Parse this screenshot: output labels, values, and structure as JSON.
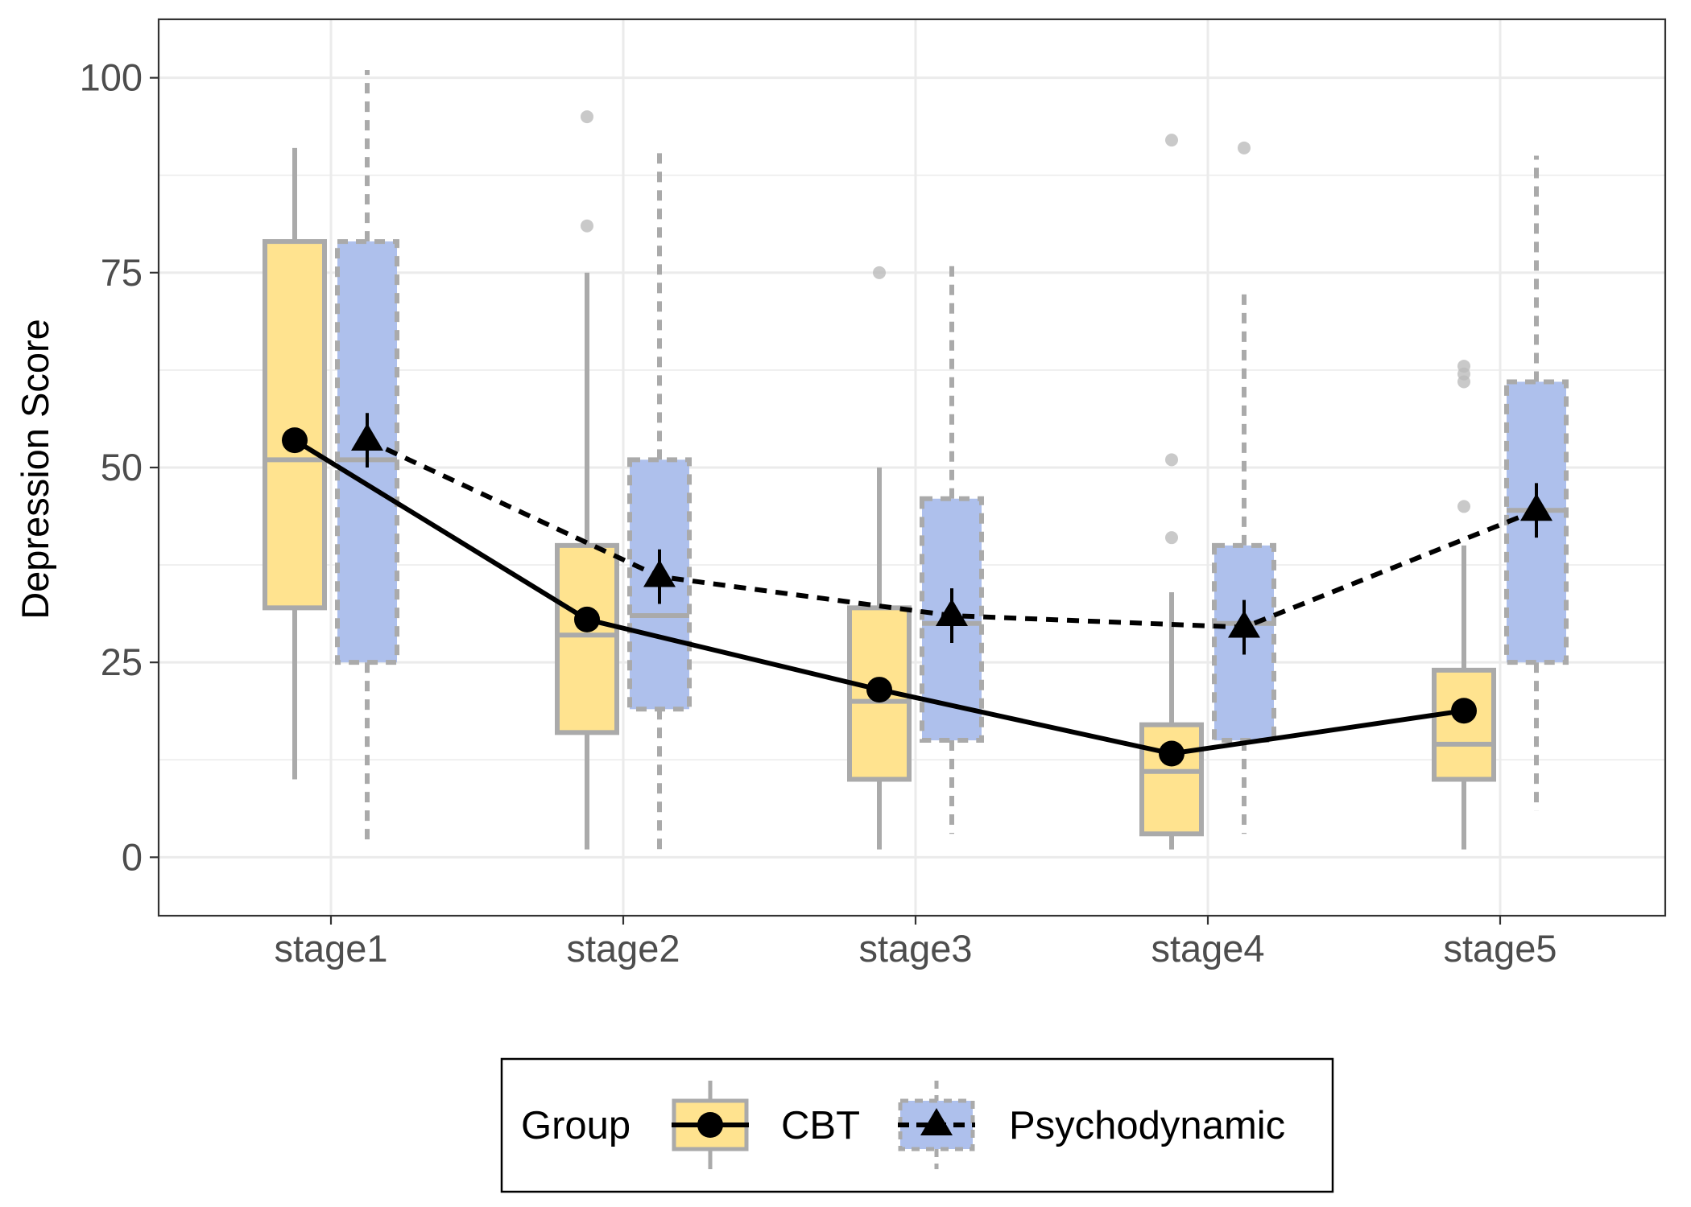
{
  "chart_data": {
    "type": "box",
    "title": "",
    "xlabel": "",
    "ylabel": "Depression Score",
    "ylim": [
      -7.5,
      107.5
    ],
    "yticks": [
      0,
      25,
      50,
      75,
      100
    ],
    "grid": true,
    "legend_position": "bottom",
    "categories": [
      "stage1",
      "stage2",
      "stage3",
      "stage4",
      "stage5"
    ],
    "legend": {
      "title": "Group",
      "entries": [
        "CBT",
        "Psychodynamic"
      ]
    },
    "colors": {
      "CBT": "#ffe38f",
      "Psychodynamic": "#aec0ec",
      "box_line": "#aaaaaa",
      "outlier": "#bbbbbb",
      "grid": "#ebebeb",
      "mean_line": "#000000"
    },
    "series": [
      {
        "name": "CBT",
        "line_style": "solid",
        "marker": "circle",
        "boxes": [
          {
            "whisker_low": 10,
            "q1": 32,
            "median": 51,
            "q3": 79,
            "whisker_high": 91,
            "outliers": []
          },
          {
            "whisker_low": 1,
            "q1": 16,
            "median": 28.5,
            "q3": 40,
            "whisker_high": 75,
            "outliers": [
              81,
              95
            ]
          },
          {
            "whisker_low": 1,
            "q1": 10,
            "median": 20,
            "q3": 32,
            "whisker_high": 50,
            "outliers": [
              75
            ]
          },
          {
            "whisker_low": 1,
            "q1": 3,
            "median": 11,
            "q3": 17,
            "whisker_high": 34,
            "outliers": [
              41,
              51,
              92
            ]
          },
          {
            "whisker_low": 1,
            "q1": 10,
            "median": 14.5,
            "q3": 24,
            "whisker_high": 40,
            "outliers": [
              45,
              61,
              62,
              63
            ]
          }
        ],
        "mean": [
          53.5,
          30.5,
          21.5,
          13.3,
          18.8
        ],
        "mean_error": [
          1.5,
          1.5,
          1.5,
          1.5,
          1.5
        ]
      },
      {
        "name": "Psychodynamic",
        "line_style": "dashed",
        "marker": "triangle",
        "boxes": [
          {
            "whisker_low": 2,
            "q1": 25,
            "median": 51,
            "q3": 79,
            "whisker_high": 101,
            "outliers": []
          },
          {
            "whisker_low": 1,
            "q1": 19,
            "median": 31,
            "q3": 51,
            "whisker_high": 91,
            "outliers": []
          },
          {
            "whisker_low": 3,
            "q1": 15,
            "median": 30,
            "q3": 46,
            "whisker_high": 76,
            "outliers": []
          },
          {
            "whisker_low": 3,
            "q1": 15,
            "median": 30,
            "q3": 40,
            "whisker_high": 73,
            "outliers": [
              91
            ]
          },
          {
            "whisker_low": 6,
            "q1": 25,
            "median": 44.5,
            "q3": 61,
            "whisker_high": 90,
            "outliers": []
          }
        ],
        "mean": [
          53.5,
          36,
          31,
          29.5,
          44.5
        ],
        "mean_error": [
          3.5,
          3.5,
          3.5,
          3.5,
          3.5
        ]
      }
    ]
  }
}
